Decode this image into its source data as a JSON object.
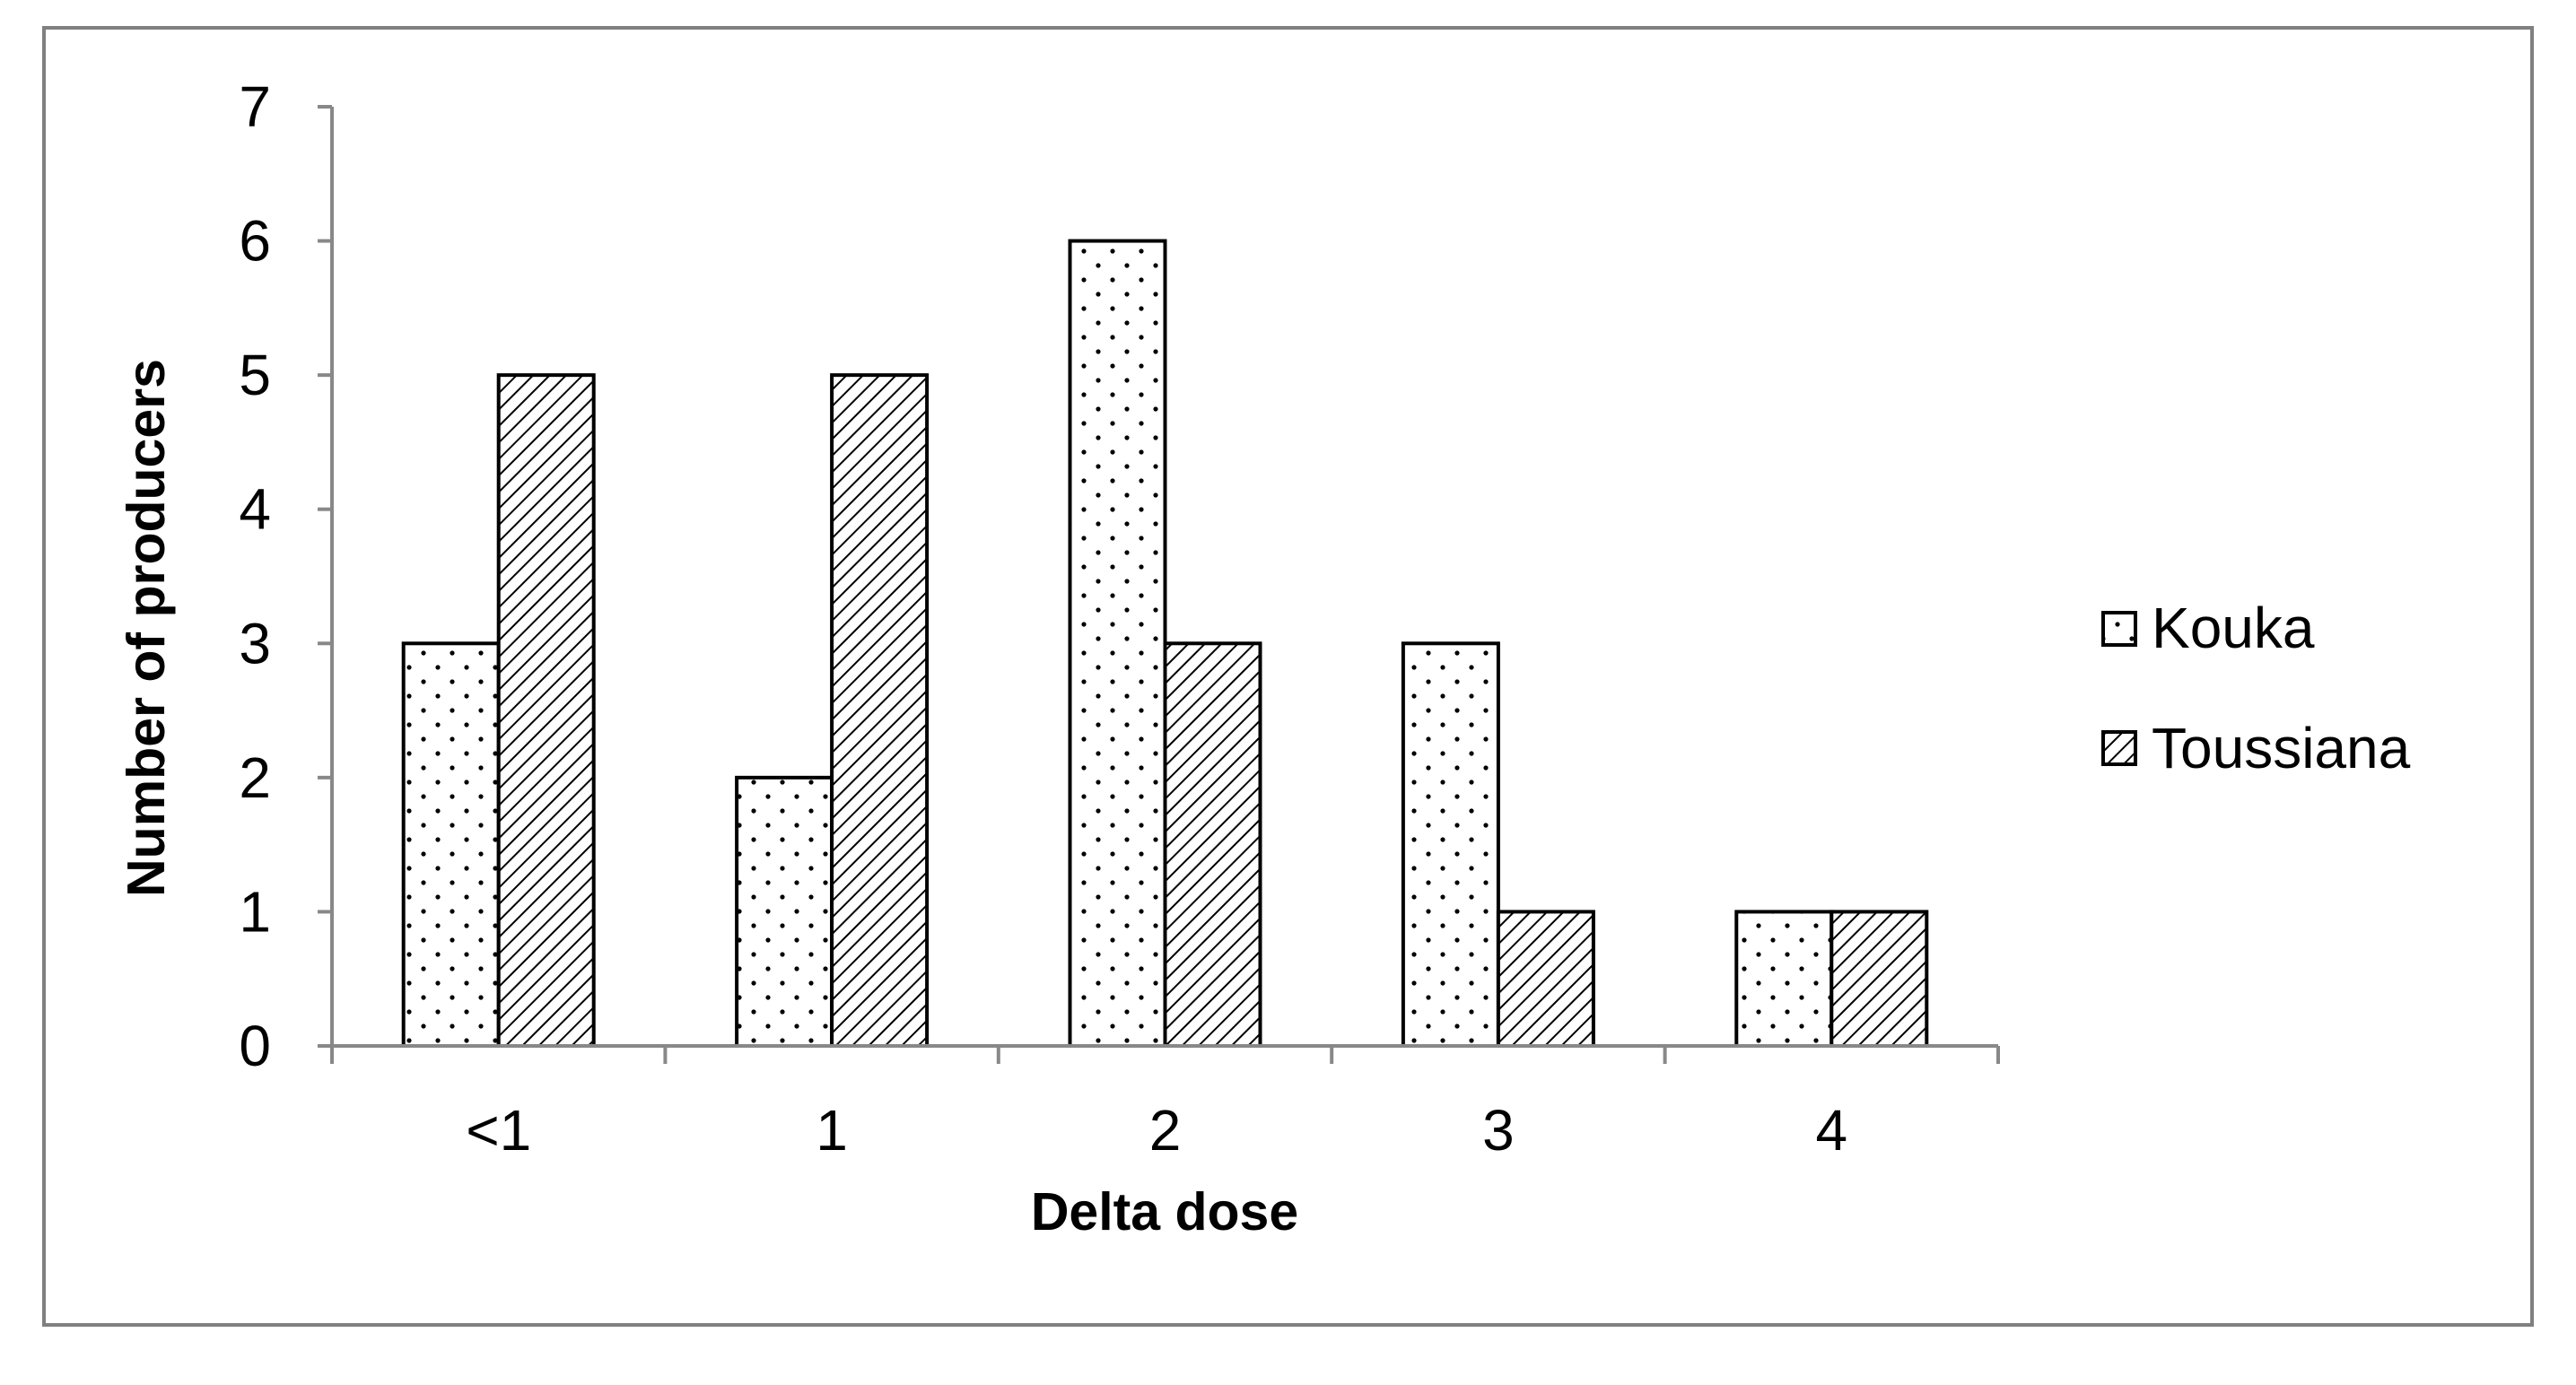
{
  "chart_data": {
    "type": "bar",
    "title": "",
    "xlabel": "Delta dose",
    "ylabel": "Number of producers",
    "categories": [
      "<1",
      "1",
      "2",
      "3",
      "4"
    ],
    "series": [
      {
        "name": "Kouka",
        "values": [
          3,
          2,
          6,
          3,
          1
        ],
        "pattern": "dots"
      },
      {
        "name": "Toussiana",
        "values": [
          5,
          5,
          3,
          1,
          1
        ],
        "pattern": "diagonal-hatch"
      }
    ],
    "ylim": [
      0,
      7
    ],
    "yticks": [
      "0",
      "1",
      "2",
      "3",
      "4",
      "5",
      "6",
      "7"
    ],
    "grid": false,
    "legend_position": "right",
    "colors": {
      "bar_fill": "#ffffff",
      "stroke": "#000000",
      "axis": "#888888",
      "frame": "#808080"
    }
  }
}
